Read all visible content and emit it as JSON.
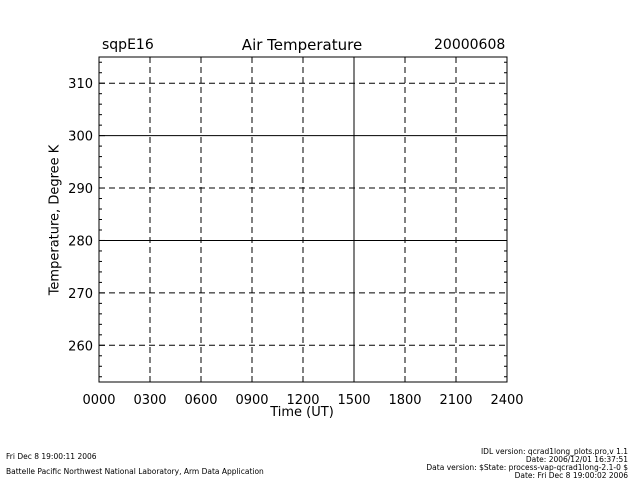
{
  "header": {
    "station": "sqpE16",
    "date": "20000608"
  },
  "chart_data": {
    "type": "line",
    "title": "Air Temperature",
    "xlabel": "Time (UT)",
    "ylabel": "Temperature, Degree K",
    "xlim": [
      0,
      2400
    ],
    "ylim": [
      253,
      315
    ],
    "x_ticks": [
      "0000",
      "0300",
      "0600",
      "0900",
      "1200",
      "1500",
      "1800",
      "2100",
      "2400"
    ],
    "y_ticks": [
      260,
      270,
      280,
      290,
      300,
      310
    ],
    "solid_x_lines": [
      1500
    ],
    "solid_y_lines": [
      280,
      300
    ],
    "grid": true,
    "series": []
  },
  "footer": {
    "timestamp": "Fri Dec  8 19:00:11 2006",
    "lab": "Battelle Pacific Northwest National Laboratory, Arm Data Application",
    "idl_version": "IDL version: qcrad1long_plots.pro,v 1.1",
    "file_date": "Date: 2006/12/01 16:37:51",
    "data_version": "Data version: $State: process-vap-qcrad1long-2.1-0 $",
    "run_date": "Date: Fri Dec  8 19:00:02 2006"
  }
}
